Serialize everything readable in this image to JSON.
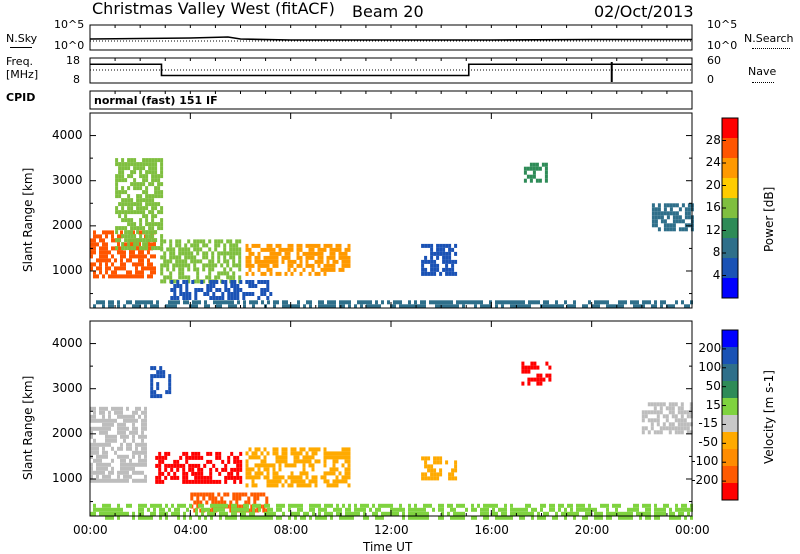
{
  "header": {
    "station": "Christmas Valley West (fitACF)",
    "beam": "Beam 20",
    "date": "02/Oct/2013"
  },
  "labels": {
    "nsky": "N.Sky",
    "nsearch": "N.Search",
    "freq_line1": "Freq.",
    "freq_line2": "[MHz]",
    "nave": "Nave",
    "cpid": "CPID",
    "cpid_value": "normal (fast) 151 IF"
  },
  "small_axis": {
    "noise_left": [
      "10^5",
      "10^0"
    ],
    "noise_right": [
      "10^5",
      "10^0"
    ],
    "freq_left": [
      "18",
      "8"
    ],
    "nave_right": [
      "60",
      "0"
    ]
  },
  "colors": {
    "power_scale": [
      "#0000ff",
      "#1a52b5",
      "#2f6f8a",
      "#2e8b57",
      "#7fbf3f",
      "#ffcc00",
      "#ff9900",
      "#ff5500",
      "#ff0000"
    ],
    "velocity_scale": [
      "#0000ff",
      "#1a52b5",
      "#2f6f8a",
      "#2e8b57",
      "#7fd33f",
      "#c8c8c8",
      "#ffaa00",
      "#ff8c00",
      "#ff5a00",
      "#ff0000"
    ],
    "ground_scatter": "#bdbdbd"
  },
  "chart_data": [
    {
      "type": "line",
      "name": "N.Sky",
      "x": [
        0,
        2,
        4,
        5.5,
        6,
        8,
        12,
        16,
        20,
        24
      ],
      "values": [
        2.2,
        2.3,
        2.4,
        2.6,
        2.2,
        2.0,
        2.0,
        2.0,
        2.1,
        2.1
      ],
      "ylim": [
        0,
        5
      ]
    },
    {
      "type": "line",
      "name": "Freq.",
      "x": [
        0,
        2.85,
        2.85,
        15.1,
        15.1,
        20.8,
        20.8,
        24
      ],
      "values": [
        15.5,
        15.5,
        11.0,
        11.0,
        15.5,
        15.5,
        15.5,
        15.5
      ],
      "ylim": [
        8,
        18
      ]
    },
    {
      "type": "heatmap",
      "title": "Power [dB]",
      "xlabel": "Time UT",
      "ylabel": "Slant Range [km]",
      "x_ticks": [
        "00:00",
        "04:00",
        "08:00",
        "12:00",
        "16:00",
        "20:00",
        "00:00"
      ],
      "y_ticks": [
        "1000",
        "2000",
        "3000",
        "4000"
      ],
      "xlim": [
        0,
        24
      ],
      "ylim": [
        180,
        4500
      ],
      "colorbar_ticks": [
        "4",
        "8",
        "12",
        "16",
        "20",
        "24",
        "28"
      ],
      "colorbar_range": [
        0,
        30
      ],
      "regions": [
        {
          "t0": 0.0,
          "t1": 2.6,
          "r0": 900,
          "r1": 1900,
          "value": 26
        },
        {
          "t0": 1.0,
          "t1": 2.8,
          "r0": 1500,
          "r1": 3500,
          "value": 14
        },
        {
          "t0": 2.8,
          "t1": 6.0,
          "r0": 800,
          "r1": 1700,
          "value": 16
        },
        {
          "t0": 3.2,
          "t1": 7.2,
          "r0": 400,
          "r1": 800,
          "value": 4
        },
        {
          "t0": 6.2,
          "t1": 10.3,
          "r0": 900,
          "r1": 1600,
          "value": 22
        },
        {
          "t0": 13.2,
          "t1": 14.6,
          "r0": 900,
          "r1": 1600,
          "value": 5
        },
        {
          "t0": 17.3,
          "t1": 18.2,
          "r0": 3000,
          "r1": 3400,
          "value": 12
        },
        {
          "t0": 22.4,
          "t1": 24.0,
          "r0": 1900,
          "r1": 2500,
          "value": 8
        },
        {
          "t0": 0.0,
          "t1": 24.0,
          "r0": 180,
          "r1": 350,
          "value": 8
        }
      ]
    },
    {
      "type": "heatmap",
      "title": "Velocity [m s-1]",
      "xlabel": "Time UT",
      "ylabel": "Slant Range [km]",
      "x_ticks": [
        "00:00",
        "04:00",
        "08:00",
        "12:00",
        "16:00",
        "20:00",
        "00:00"
      ],
      "y_ticks": [
        "1000",
        "2000",
        "3000",
        "4000"
      ],
      "xlim": [
        0,
        24
      ],
      "ylim": [
        180,
        4500
      ],
      "colorbar_ticks": [
        "200",
        "100",
        "50",
        "15",
        "-15",
        "-50",
        "-100",
        "-200"
      ],
      "colorbar_range": [
        -250,
        250
      ],
      "regions": [
        {
          "t0": 0.0,
          "t1": 2.2,
          "r0": 1000,
          "r1": 2600,
          "value": 0,
          "ground": true
        },
        {
          "t0": 2.6,
          "t1": 6.0,
          "r0": 900,
          "r1": 1600,
          "value": -200
        },
        {
          "t0": 2.4,
          "t1": 3.2,
          "r0": 2800,
          "r1": 3500,
          "value": 150
        },
        {
          "t0": 4.0,
          "t1": 7.0,
          "r0": 300,
          "r1": 700,
          "value": -150
        },
        {
          "t0": 6.2,
          "t1": 10.3,
          "r0": 900,
          "r1": 1700,
          "value": -60
        },
        {
          "t0": 13.2,
          "t1": 14.6,
          "r0": 1000,
          "r1": 1500,
          "value": -50
        },
        {
          "t0": 17.2,
          "t1": 18.3,
          "r0": 3100,
          "r1": 3600,
          "value": -200
        },
        {
          "t0": 22.0,
          "t1": 24.0,
          "r0": 2000,
          "r1": 2700,
          "value": 0,
          "ground": true
        },
        {
          "t0": 0.0,
          "t1": 24.0,
          "r0": 180,
          "r1": 450,
          "value": 30
        }
      ]
    }
  ]
}
